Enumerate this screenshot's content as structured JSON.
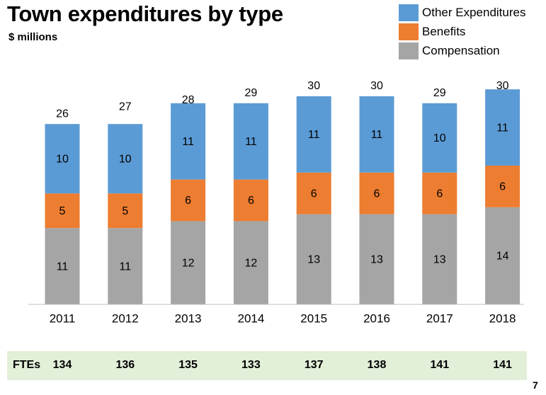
{
  "title": "Town expenditures by type",
  "subtitle": "$ millions",
  "legend": [
    {
      "label": "Other Expenditures",
      "color": "#5b9bd5"
    },
    {
      "label": "Benefits",
      "color": "#ed7d31"
    },
    {
      "label": "Compensation",
      "color": "#a5a5a5"
    }
  ],
  "chart_data": {
    "type": "bar",
    "stacked": true,
    "categories": [
      "2011",
      "2012",
      "2013",
      "2014",
      "2015",
      "2016",
      "2017",
      "2018"
    ],
    "series": [
      {
        "name": "Compensation",
        "color": "#a5a5a5",
        "values": [
          11,
          11,
          12,
          12,
          13,
          13,
          13,
          14
        ]
      },
      {
        "name": "Benefits",
        "color": "#ed7d31",
        "values": [
          5,
          5,
          6,
          6,
          6,
          6,
          6,
          6
        ]
      },
      {
        "name": "Other Expenditures",
        "color": "#5b9bd5",
        "values": [
          10,
          10,
          11,
          11,
          11,
          11,
          10,
          11
        ]
      }
    ],
    "totals": [
      26,
      27,
      28,
      29,
      30,
      30,
      29,
      30
    ],
    "title": "Town expenditures by type",
    "ylabel": "$ millions",
    "xlabel": "",
    "ylim": [
      0,
      30
    ],
    "grid": false,
    "legend_position": "top-right"
  },
  "fte": {
    "label": "FTEs",
    "values": [
      "134",
      "136",
      "135",
      "133",
      "137",
      "138",
      "141",
      "141"
    ]
  },
  "page_number": "7"
}
